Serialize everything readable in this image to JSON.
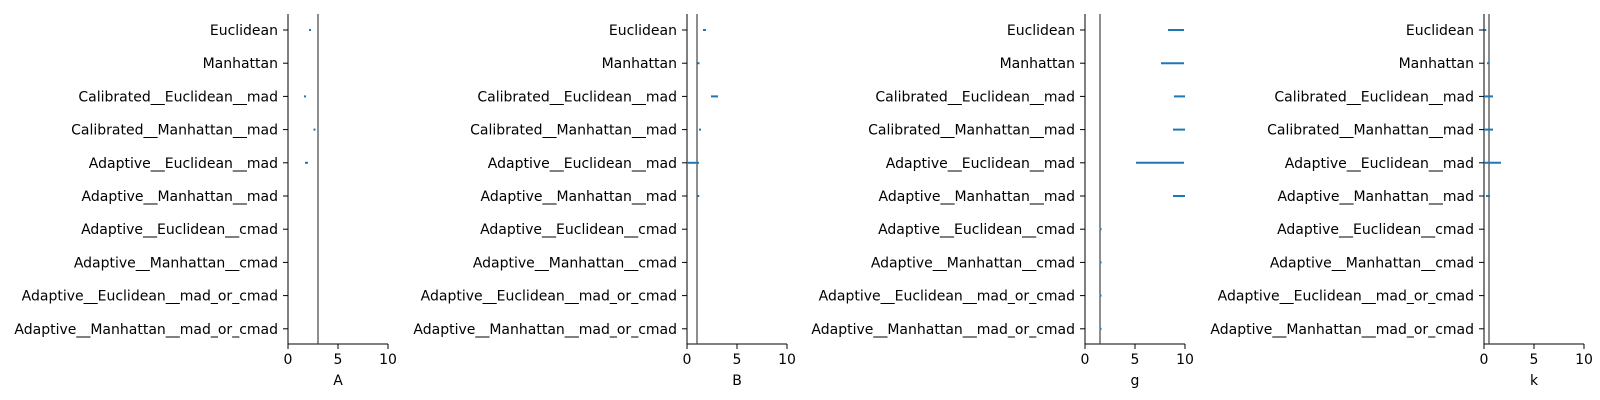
{
  "chart_data": [
    {
      "type": "errorbar",
      "xlabel": "A",
      "xlim": [
        0,
        10
      ],
      "xticks": [
        "0",
        "5",
        "10"
      ],
      "reference_line": 3.0,
      "categories": [
        "Euclidean",
        "Manhattan",
        "Calibrated__Euclidean__mad",
        "Calibrated__Manhattan__mad",
        "Adaptive__Euclidean__mad",
        "Adaptive__Manhattan__mad",
        "Adaptive__Euclidean__cmad",
        "Adaptive__Manhattan__cmad",
        "Adaptive__Euclidean__mad_or_cmad",
        "Adaptive__Manhattan__mad_or_cmad"
      ],
      "intervals": [
        [
          2.1,
          2.3
        ],
        null,
        [
          1.6,
          1.8
        ],
        [
          2.6,
          2.7
        ],
        [
          1.7,
          2.0
        ],
        null,
        null,
        null,
        null,
        null
      ]
    },
    {
      "type": "errorbar",
      "xlabel": "B",
      "xlim": [
        0,
        10
      ],
      "xticks": [
        "0",
        "5",
        "10"
      ],
      "reference_line": 1.0,
      "categories": [
        "Euclidean",
        "Manhattan",
        "Calibrated__Euclidean__mad",
        "Calibrated__Manhattan__mad",
        "Adaptive__Euclidean__mad",
        "Adaptive__Manhattan__mad",
        "Adaptive__Euclidean__cmad",
        "Adaptive__Manhattan__cmad",
        "Adaptive__Euclidean__mad_or_cmad",
        "Adaptive__Manhattan__mad_or_cmad"
      ],
      "intervals": [
        [
          1.6,
          1.9
        ],
        [
          1.1,
          1.2
        ],
        [
          2.4,
          3.1
        ],
        [
          1.2,
          1.4
        ],
        [
          0.0,
          1.2
        ],
        [
          1.05,
          1.2
        ],
        null,
        null,
        null,
        null
      ]
    },
    {
      "type": "errorbar",
      "xlabel": "g",
      "xlim": [
        0,
        10
      ],
      "xticks": [
        "0",
        "5",
        "10"
      ],
      "reference_line": 1.5,
      "categories": [
        "Euclidean",
        "Manhattan",
        "Calibrated__Euclidean__mad",
        "Calibrated__Manhattan__mad",
        "Adaptive__Euclidean__mad",
        "Adaptive__Manhattan__mad",
        "Adaptive__Euclidean__cmad",
        "Adaptive__Manhattan__cmad",
        "Adaptive__Euclidean__mad_or_cmad",
        "Adaptive__Manhattan__mad_or_cmad"
      ],
      "intervals": [
        [
          8.3,
          9.9
        ],
        [
          7.6,
          9.9
        ],
        [
          8.9,
          10.0
        ],
        [
          8.8,
          10.0
        ],
        [
          5.1,
          9.9
        ],
        [
          8.8,
          10.0
        ],
        [
          1.5,
          1.6
        ],
        [
          1.5,
          1.6
        ],
        [
          1.5,
          1.6
        ],
        [
          1.5,
          1.6
        ]
      ]
    },
    {
      "type": "errorbar",
      "xlabel": "k",
      "xlim": [
        0,
        10
      ],
      "xticks": [
        "0",
        "5",
        "10"
      ],
      "reference_line": 0.5,
      "categories": [
        "Euclidean",
        "Manhattan",
        "Calibrated__Euclidean__mad",
        "Calibrated__Manhattan__mad",
        "Adaptive__Euclidean__mad",
        "Adaptive__Manhattan__mad",
        "Adaptive__Euclidean__cmad",
        "Adaptive__Manhattan__cmad",
        "Adaptive__Euclidean__mad_or_cmad",
        "Adaptive__Manhattan__mad_or_cmad"
      ],
      "intervals": [
        [
          0.05,
          0.2
        ],
        [
          0.3,
          0.5
        ],
        [
          0.0,
          0.9
        ],
        [
          0.0,
          0.9
        ],
        [
          0.0,
          1.7
        ],
        [
          0.2,
          0.6
        ],
        null,
        null,
        null,
        null
      ]
    }
  ],
  "colors": {
    "interval": "#1f77b4",
    "reference_line": "#444444",
    "axis": "#000000"
  }
}
